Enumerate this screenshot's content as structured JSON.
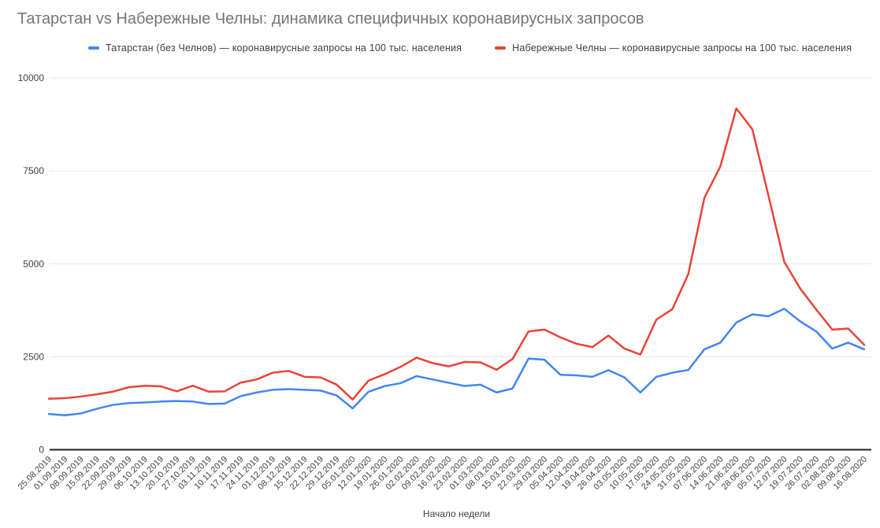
{
  "chart_data": {
    "type": "line",
    "title": "Татарстан vs Набережные Челны: динамика специфичных коронавирусных запросов",
    "xlabel": "Начало недели",
    "ylabel": "",
    "ylim": [
      0,
      10000
    ],
    "yticks": [
      0,
      2500,
      5000,
      7500,
      10000
    ],
    "grid": true,
    "legend_position": "top",
    "categories": [
      "25.08.2019",
      "01.09.2019",
      "08.09.2019",
      "15.09.2019",
      "22.09.2019",
      "29.09.2019",
      "06.10.2019",
      "13.10.2019",
      "20.10.2019",
      "27.10.2019",
      "03.11.2019",
      "10.11.2019",
      "17.11.2019",
      "24.11.2019",
      "01.12.2019",
      "08.12.2019",
      "15.12.2019",
      "22.12.2019",
      "29.12.2019",
      "05.01.2020",
      "12.01.2020",
      "19.01.2020",
      "26.01.2020",
      "02.02.2020",
      "09.02.2020",
      "16.02.2020",
      "23.02.2020",
      "01.03.2020",
      "08.03.2020",
      "15.03.2020",
      "22.03.2020",
      "29.03.2020",
      "05.04.2020",
      "12.04.2020",
      "19.04.2020",
      "26.04.2020",
      "03.05.2020",
      "10.05.2020",
      "17.05.2020",
      "24.05.2020",
      "31.05.2020",
      "07.06.2020",
      "14.06.2020",
      "21.06.2020",
      "28.06.2020",
      "05.07.2020",
      "12.07.2020",
      "19.07.2020",
      "26.07.2020",
      "02.08.2020",
      "09.08.2020",
      "16.08.2020"
    ],
    "series": [
      {
        "name": "Татарстан (без Челнов) — коронавирусные запросы на 100 тыс. населения",
        "color": "#4285f4",
        "values": [
          960,
          925,
          975,
          1100,
          1205,
          1255,
          1270,
          1295,
          1310,
          1295,
          1230,
          1240,
          1440,
          1540,
          1610,
          1630,
          1610,
          1590,
          1460,
          1110,
          1560,
          1710,
          1790,
          1980,
          1890,
          1800,
          1715,
          1750,
          1540,
          1645,
          2450,
          2420,
          2015,
          2000,
          1960,
          2140,
          1945,
          1540,
          1960,
          2070,
          2145,
          2700,
          2880,
          3420,
          3640,
          3590,
          3790,
          3450,
          3180,
          2720,
          2880,
          2700
        ]
      },
      {
        "name": "Набережные Челны — коронавирусные запросы на 100 тыс. населения",
        "color": "#ea4335",
        "values": [
          1370,
          1385,
          1430,
          1490,
          1560,
          1680,
          1720,
          1705,
          1570,
          1720,
          1560,
          1570,
          1805,
          1890,
          2070,
          2120,
          1960,
          1945,
          1750,
          1350,
          1860,
          2030,
          2230,
          2475,
          2330,
          2240,
          2360,
          2350,
          2150,
          2440,
          3180,
          3230,
          3020,
          2850,
          2760,
          3070,
          2720,
          2560,
          3500,
          3780,
          4730,
          6770,
          7620,
          9180,
          8620,
          6850,
          5050,
          4330,
          3770,
          3230,
          3260,
          2820
        ]
      }
    ]
  },
  "styles": {
    "title_color": "#757575",
    "tick_color": "#424242",
    "grid_color": "#e6e6e6",
    "axis_color": "#212121"
  }
}
